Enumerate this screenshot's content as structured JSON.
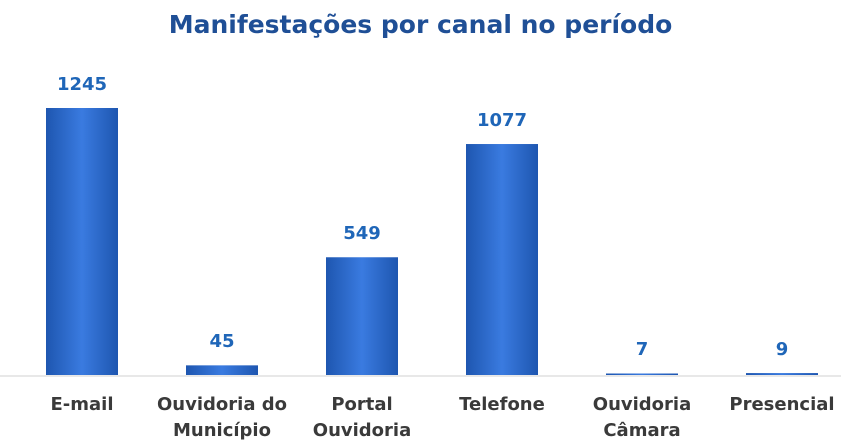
{
  "chart_data": {
    "type": "bar",
    "title": "Manifestações por canal no período",
    "categories": [
      "E-mail",
      "Ouvidoria do\nMunicípio",
      "Portal\nOuvidoria",
      "Telefone",
      "Ouvidoria\nCâmara",
      "Presencial"
    ],
    "values": [
      1245,
      45,
      549,
      1077,
      7,
      9
    ],
    "color": "#2a6bd0"
  }
}
